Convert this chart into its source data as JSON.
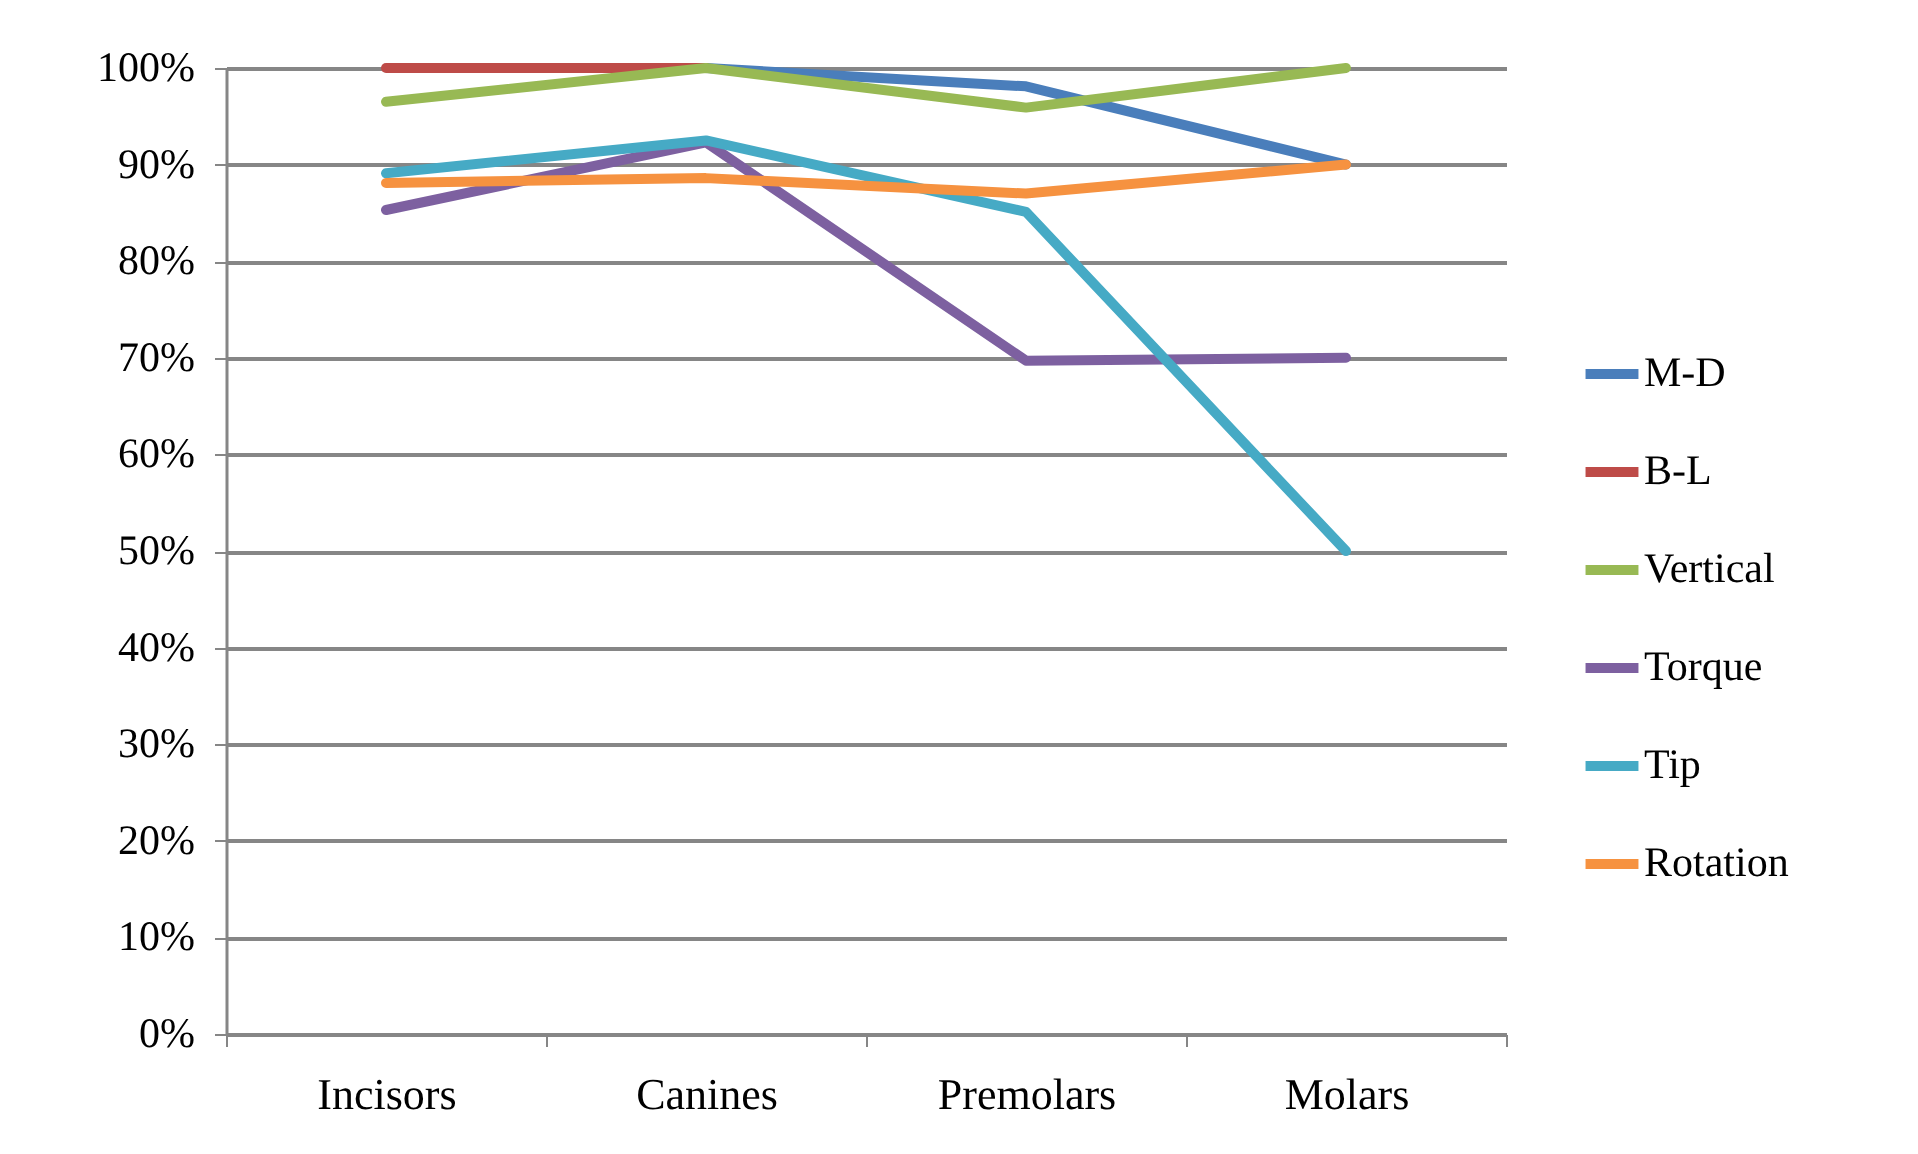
{
  "chart_data": {
    "type": "line",
    "categories": [
      "Incisors",
      "Canines",
      "Premolars",
      "Molars"
    ],
    "series": [
      {
        "name": "M-D",
        "color": "#4a7ebb",
        "values": [
          null,
          100,
          98.1,
          90
        ]
      },
      {
        "name": "B-L",
        "color": "#be4b48",
        "values": [
          100,
          100,
          null,
          null
        ]
      },
      {
        "name": "Vertical",
        "color": "#98b954",
        "values": [
          96.5,
          100,
          95.9,
          100
        ]
      },
      {
        "name": "Torque",
        "color": "#7d60a0",
        "values": [
          85.3,
          92.3,
          69.7,
          70.0
        ]
      },
      {
        "name": "Tip",
        "color": "#46aac5",
        "values": [
          89.1,
          92.5,
          85.1,
          50
        ]
      },
      {
        "name": "Rotation",
        "color": "#f69240",
        "values": [
          88.1,
          88.6,
          87.0,
          90
        ]
      }
    ],
    "ylim": [
      0,
      100
    ],
    "yticks": [
      {
        "value": 0,
        "label": "0%"
      },
      {
        "value": 10,
        "label": "10%"
      },
      {
        "value": 20,
        "label": "20%"
      },
      {
        "value": 30,
        "label": "30%"
      },
      {
        "value": 40,
        "label": "40%"
      },
      {
        "value": 50,
        "label": "50%"
      },
      {
        "value": 60,
        "label": "60%"
      },
      {
        "value": 70,
        "label": "70%"
      },
      {
        "value": 80,
        "label": "80%"
      },
      {
        "value": 90,
        "label": "90%"
      },
      {
        "value": 100,
        "label": "100%"
      }
    ],
    "grid": "y",
    "legend": "right",
    "marker": "none",
    "line_style": "solid"
  }
}
